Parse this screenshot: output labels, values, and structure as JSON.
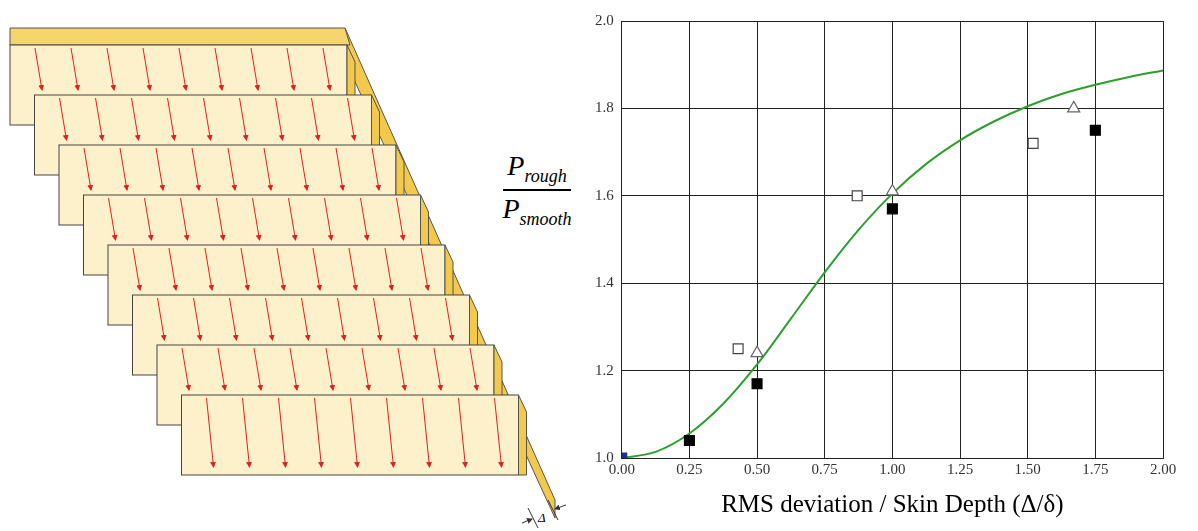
{
  "chart_data": {
    "type": "scatter",
    "xlabel": "RMS deviation / Skin Depth (Δ/δ)",
    "ylabel": {
      "numerator": "P",
      "numerator_subscript": "rough",
      "denominator": "P",
      "denominator_subscript": "smooth"
    },
    "xlim": [
      0,
      2
    ],
    "xticks": [
      {
        "value": 0,
        "label": "0.00"
      },
      {
        "value": 0.25,
        "label": "0.25"
      },
      {
        "value": 0.5,
        "label": "0.50"
      },
      {
        "value": 0.75,
        "label": "0.75"
      },
      {
        "value": 1,
        "label": "1.00"
      },
      {
        "value": 1.25,
        "label": "1.25"
      },
      {
        "value": 1.5,
        "label": "1.50"
      },
      {
        "value": 1.75,
        "label": "1.75"
      },
      {
        "value": 2,
        "label": "2.00"
      }
    ],
    "ylim": [
      1,
      2
    ],
    "yticks": [
      {
        "value": 1,
        "label": "1.0"
      },
      1.2,
      1.4,
      1.6,
      1.8,
      {
        "value": 2,
        "label": "2.0"
      }
    ],
    "grid": true,
    "series": [
      {
        "type": "line",
        "color": "#2ca02c",
        "line_style": "solid",
        "x": [
          0,
          0.125,
          0.25,
          0.375,
          0.5,
          0.625,
          0.75,
          0.875,
          1,
          1.125,
          1.25,
          1.375,
          1.5,
          1.625,
          1.75,
          1.875,
          2
        ],
        "values": [
          1.0,
          1.014,
          1.056,
          1.124,
          1.214,
          1.319,
          1.425,
          1.522,
          1.605,
          1.673,
          1.727,
          1.77,
          1.805,
          1.833,
          1.854,
          1.872,
          1.887
        ]
      },
      {
        "type": "scatter",
        "color": "#444444",
        "marker": "open_square",
        "x": [
          0.43,
          0.87,
          1.52
        ],
        "values": [
          1.25,
          1.6,
          1.72
        ]
      },
      {
        "type": "scatter",
        "color": "#000000",
        "marker": "square",
        "x": [
          0.25,
          0.5,
          1.0,
          1.75
        ],
        "values": [
          1.04,
          1.17,
          1.57,
          1.75
        ]
      },
      {
        "type": "scatter",
        "color": "#666666",
        "marker": "open_triangle",
        "x": [
          0.5,
          1.0,
          1.67
        ],
        "values": [
          1.24,
          1.61,
          1.8
        ]
      },
      {
        "type": "scatter",
        "color": "#1f2f8f",
        "marker": "square",
        "x": [
          0
        ],
        "values": [
          1.0
        ]
      }
    ]
  },
  "diagram": {
    "dimension_label": "Δ"
  }
}
